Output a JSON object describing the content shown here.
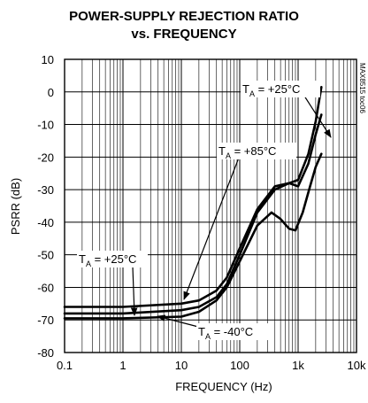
{
  "chart_data": {
    "type": "line",
    "title_line1": "POWER-SUPPLY REJECTION RATIO",
    "title_line2": "vs. FREQUENCY",
    "xlabel": "FREQUENCY (Hz)",
    "ylabel": "PSRR (dB)",
    "x_scale": "log",
    "xlim": [
      0.1,
      10000
    ],
    "ylim": [
      -80,
      10
    ],
    "x_ticks": [
      0.1,
      1,
      10,
      100,
      1000,
      10000
    ],
    "x_tick_labels": [
      "0.1",
      "1",
      "10",
      "100",
      "1k",
      "10k"
    ],
    "y_ticks": [
      10,
      0,
      -10,
      -20,
      -30,
      -40,
      -50,
      -60,
      -70,
      -80
    ],
    "y_tick_labels": [
      "10",
      "0",
      "-10",
      "-20",
      "-30",
      "-40",
      "-50",
      "-60",
      "-70",
      "-80"
    ],
    "grid": true,
    "part_number": "MAX8515 toc06",
    "series": [
      {
        "name": "TA = +25°C",
        "x": [
          0.1,
          1,
          10,
          20,
          40,
          60,
          100,
          200,
          400,
          700,
          1000,
          1500,
          2000,
          2500
        ],
        "y": [
          -66,
          -66,
          -65,
          -64,
          -61,
          -57,
          -48,
          -36,
          -29,
          -28,
          -27,
          -19,
          -9,
          1.5
        ]
      },
      {
        "name": "TA = +85°C",
        "x": [
          0.1,
          1,
          10,
          20,
          40,
          60,
          100,
          200,
          400,
          700,
          1000,
          1500,
          2000,
          2500
        ],
        "y": [
          -68,
          -68,
          -67,
          -66,
          -63,
          -59,
          -50,
          -37,
          -30,
          -28,
          -29,
          -22,
          -13,
          -7
        ]
      },
      {
        "name": "TA = -40°C",
        "x": [
          0.1,
          1,
          10,
          20,
          40,
          60,
          100,
          200,
          350,
          500,
          700,
          900,
          1200,
          1600,
          2000,
          2500
        ],
        "y": [
          -69.5,
          -69.5,
          -69,
          -67.5,
          -64,
          -60,
          -52,
          -41,
          -37,
          -39,
          -42,
          -42.5,
          -37,
          -29,
          -23,
          -19
        ]
      }
    ],
    "annotations": [
      {
        "main": "T",
        "sub": "A",
        "rest": " = +25°C"
      },
      {
        "main": "T",
        "sub": "A",
        "rest": " = +85°C"
      },
      {
        "main": "T",
        "sub": "A",
        "rest": " = +25°C"
      },
      {
        "main": "T",
        "sub": "A",
        "rest": " = -40°C"
      }
    ]
  }
}
